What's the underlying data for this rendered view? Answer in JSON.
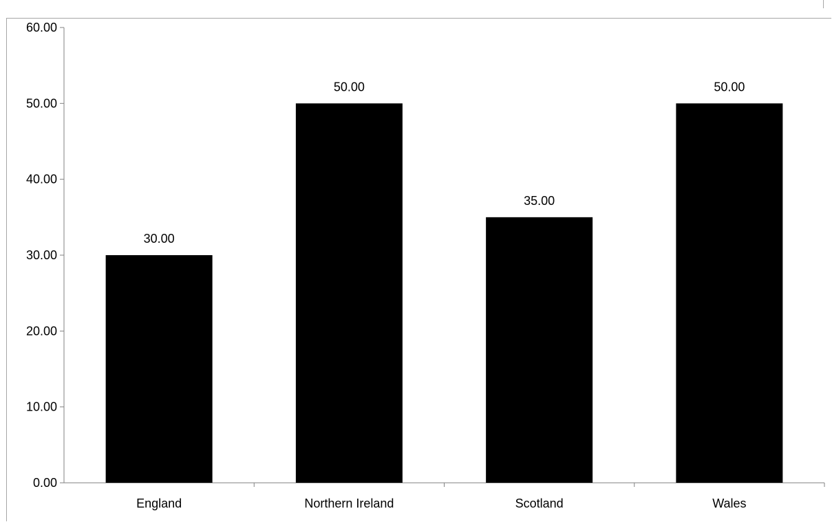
{
  "chart_data": {
    "type": "bar",
    "title": "",
    "categories": [
      "England",
      "Northern Ireland",
      "Scotland",
      "Wales"
    ],
    "values": [
      30.0,
      50.0,
      35.0,
      50.0
    ],
    "data_labels": [
      "30.00",
      "50.00",
      "35.00",
      "50.00"
    ],
    "y_tick_labels": [
      "0.00",
      "10.00",
      "20.00",
      "30.00",
      "40.00",
      "50.00",
      "60.00"
    ],
    "ylim": [
      0,
      60
    ],
    "xlabel": "",
    "ylabel": "",
    "grid": false,
    "legend": "none",
    "bar_color": "#000000",
    "axis_color": "#808080"
  }
}
